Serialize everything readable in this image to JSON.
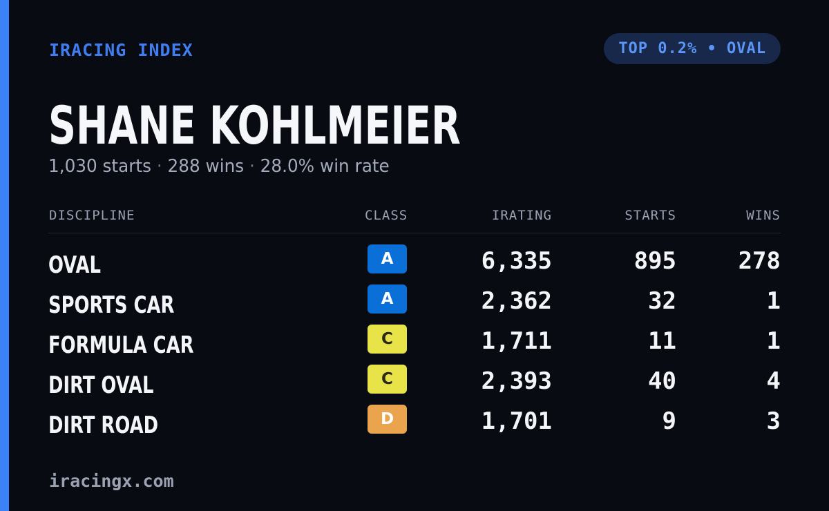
{
  "header": {
    "brand": "IRACING INDEX",
    "badge": "TOP 0.2% • OVAL",
    "accent_color": "#3b82f6"
  },
  "driver": {
    "name": "SHANE KOHLMEIER",
    "starts_text": "1,030 starts",
    "wins_text": "288 wins",
    "win_rate_text": "28.0% win rate",
    "separator": "·"
  },
  "table": {
    "columns": {
      "discipline": "DISCIPLINE",
      "class": "CLASS",
      "irating": "IRATING",
      "starts": "STARTS",
      "wins": "WINS"
    },
    "rows": [
      {
        "discipline": "OVAL",
        "class": "A",
        "class_bg": "#0a6fd6",
        "class_fg": "#ffffff",
        "irating": "6,335",
        "starts": "895",
        "wins": "278"
      },
      {
        "discipline": "SPORTS CAR",
        "class": "A",
        "class_bg": "#0a6fd6",
        "class_fg": "#ffffff",
        "irating": "2,362",
        "starts": "32",
        "wins": "1"
      },
      {
        "discipline": "FORMULA CAR",
        "class": "C",
        "class_bg": "#e9e34a",
        "class_fg": "#2a2a1a",
        "irating": "1,711",
        "starts": "11",
        "wins": "1"
      },
      {
        "discipline": "DIRT OVAL",
        "class": "C",
        "class_bg": "#e9e34a",
        "class_fg": "#2a2a1a",
        "irating": "2,393",
        "starts": "40",
        "wins": "4"
      },
      {
        "discipline": "DIRT ROAD",
        "class": "D",
        "class_bg": "#eaa44e",
        "class_fg": "#ffffff",
        "irating": "1,701",
        "starts": "9",
        "wins": "3"
      }
    ]
  },
  "footer": {
    "site": "iracingx.com"
  }
}
